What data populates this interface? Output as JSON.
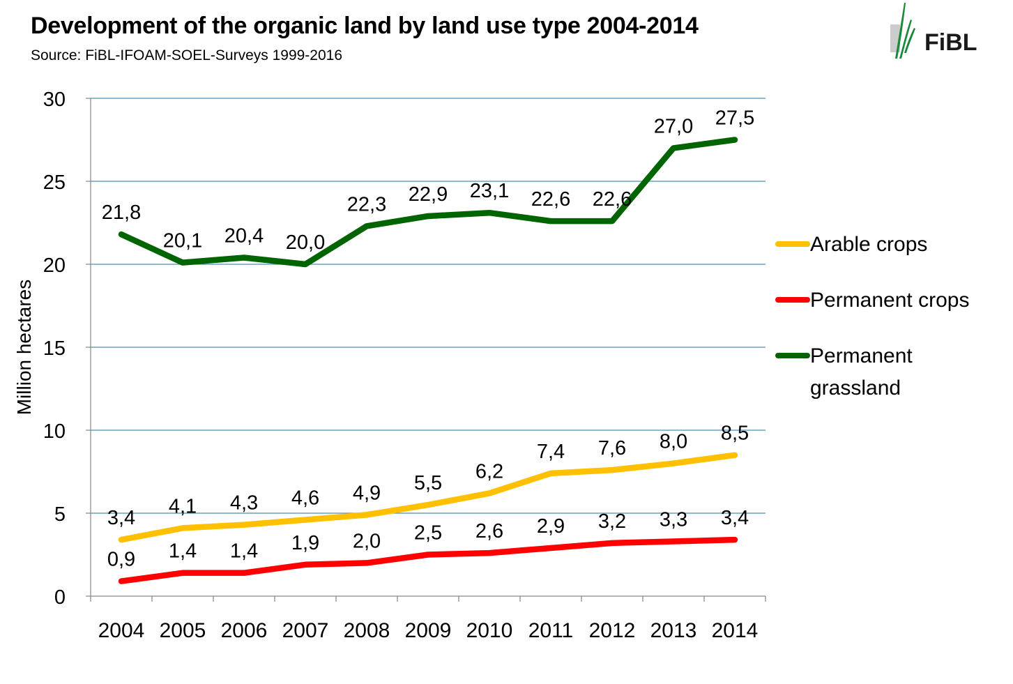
{
  "title": "Development of the organic land by land use type 2004-2014",
  "subtitle": "Source: FiBL-IFOAM-SOEL-Surveys 1999-2016",
  "logo": {
    "text": "FiBL",
    "icon": "fibl-logo-icon",
    "color": "#1a5c2a"
  },
  "chart_data": {
    "type": "line",
    "title": "Development of the organic land by land use type 2004-2014",
    "xlabel": "",
    "ylabel": "Million hectares",
    "categories": [
      "2004",
      "2005",
      "2006",
      "2007",
      "2008",
      "2009",
      "2010",
      "2011",
      "2012",
      "2013",
      "2014"
    ],
    "ylim": [
      0,
      30
    ],
    "yticks": [
      0,
      5,
      10,
      15,
      20,
      25,
      30
    ],
    "grid": true,
    "legend_position": "right",
    "decimal_separator": ",",
    "series": [
      {
        "name": "Arable crops",
        "color": "#FFC000",
        "values": [
          3.4,
          4.1,
          4.3,
          4.6,
          4.9,
          5.5,
          6.2,
          7.4,
          7.6,
          8.0,
          8.5
        ],
        "labels": [
          "3,4",
          "4,1",
          "4,3",
          "4,6",
          "4,9",
          "5,5",
          "6,2",
          "7,4",
          "7,6",
          "8,0",
          "8,5"
        ]
      },
      {
        "name": "Permanent crops",
        "color": "#FF0000",
        "values": [
          0.9,
          1.4,
          1.4,
          1.9,
          2.0,
          2.5,
          2.6,
          2.9,
          3.2,
          3.3,
          3.4
        ],
        "labels": [
          "0,9",
          "1,4",
          "1,4",
          "1,9",
          "2,0",
          "2,5",
          "2,6",
          "2,9",
          "3,2",
          "3,3",
          "3,4"
        ]
      },
      {
        "name": "Permanent grassland",
        "color": "#006400",
        "values": [
          21.8,
          20.1,
          20.4,
          20.0,
          22.3,
          22.9,
          23.1,
          22.6,
          22.6,
          27.0,
          27.5
        ],
        "labels": [
          "21,8",
          "20,1",
          "20,4",
          "20,0",
          "22,3",
          "22,9",
          "23,1",
          "22,6",
          "22,6",
          "27,0",
          "27,5"
        ]
      }
    ]
  }
}
